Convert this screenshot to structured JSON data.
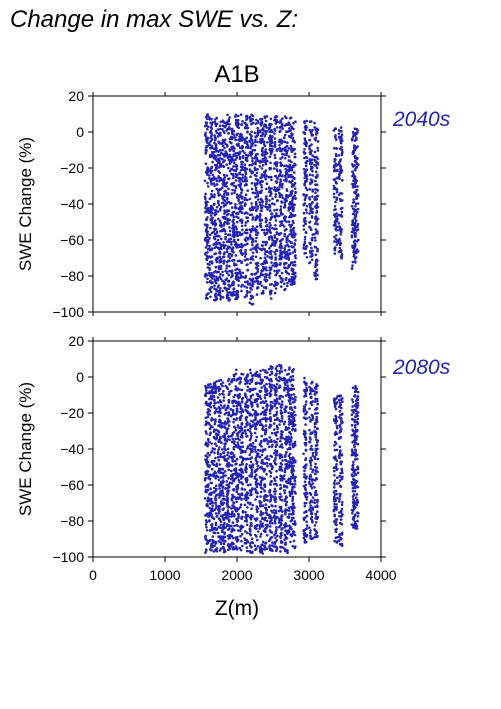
{
  "heading": "Change in max SWE vs. Z:",
  "chart_data": {
    "type": "scatter",
    "title": "A1B",
    "xlabel": "Z(m)",
    "ylabel": "SWE Change (%)",
    "xlim": [
      0,
      4000
    ],
    "ylim": [
      -100,
      20
    ],
    "xticks": [
      0,
      1000,
      2000,
      3000,
      4000
    ],
    "yticks": [
      -100,
      -80,
      -60,
      -40,
      -20,
      0,
      20
    ],
    "grid": false,
    "point_color": "#2222bb",
    "panels": [
      {
        "name": "2040s",
        "elevation_columns": [
          {
            "x": 1580,
            "ymin": -93,
            "ymax": 10
          },
          {
            "x": 1640,
            "ymin": -92,
            "ymax": 9
          },
          {
            "x": 1700,
            "ymin": -94,
            "ymax": 8
          },
          {
            "x": 1760,
            "ymin": -93,
            "ymax": 10
          },
          {
            "x": 1820,
            "ymin": -92,
            "ymax": 9
          },
          {
            "x": 1880,
            "ymin": -94,
            "ymax": 10
          },
          {
            "x": 1940,
            "ymin": -91,
            "ymax": 10
          },
          {
            "x": 2000,
            "ymin": -93,
            "ymax": 10
          },
          {
            "x": 2060,
            "ymin": -90,
            "ymax": 10
          },
          {
            "x": 2130,
            "ymin": -92,
            "ymax": 9
          },
          {
            "x": 2200,
            "ymin": -96,
            "ymax": 10
          },
          {
            "x": 2270,
            "ymin": -92,
            "ymax": 9
          },
          {
            "x": 2340,
            "ymin": -90,
            "ymax": 8
          },
          {
            "x": 2400,
            "ymin": -88,
            "ymax": 9
          },
          {
            "x": 2470,
            "ymin": -93,
            "ymax": 8
          },
          {
            "x": 2540,
            "ymin": -90,
            "ymax": 9
          },
          {
            "x": 2610,
            "ymin": -86,
            "ymax": 8
          },
          {
            "x": 2680,
            "ymin": -88,
            "ymax": 9
          },
          {
            "x": 2740,
            "ymin": -86,
            "ymax": 8
          },
          {
            "x": 2790,
            "ymin": -85,
            "ymax": 7
          },
          {
            "x": 2950,
            "ymin": -70,
            "ymax": 7
          },
          {
            "x": 3030,
            "ymin": -73,
            "ymax": 6
          },
          {
            "x": 3100,
            "ymin": -82,
            "ymax": 5
          },
          {
            "x": 3370,
            "ymin": -68,
            "ymax": 2
          },
          {
            "x": 3440,
            "ymin": -72,
            "ymax": 3
          },
          {
            "x": 3620,
            "ymin": -76,
            "ymax": 0
          },
          {
            "x": 3660,
            "ymin": -70,
            "ymax": 2
          }
        ]
      },
      {
        "name": "2080s",
        "elevation_columns": [
          {
            "x": 1580,
            "ymin": -98,
            "ymax": -3
          },
          {
            "x": 1640,
            "ymin": -97,
            "ymax": -3
          },
          {
            "x": 1700,
            "ymin": -98,
            "ymax": -2
          },
          {
            "x": 1760,
            "ymin": -97,
            "ymax": -1
          },
          {
            "x": 1820,
            "ymin": -98,
            "ymax": -2
          },
          {
            "x": 1880,
            "ymin": -97,
            "ymax": 0
          },
          {
            "x": 1940,
            "ymin": -98,
            "ymax": 2
          },
          {
            "x": 2000,
            "ymin": -97,
            "ymax": 4
          },
          {
            "x": 2060,
            "ymin": -98,
            "ymax": 3
          },
          {
            "x": 2130,
            "ymin": -97,
            "ymax": 2
          },
          {
            "x": 2200,
            "ymin": -98,
            "ymax": 4
          },
          {
            "x": 2270,
            "ymin": -97,
            "ymax": 3
          },
          {
            "x": 2340,
            "ymin": -98,
            "ymax": 4
          },
          {
            "x": 2400,
            "ymin": -97,
            "ymax": 5
          },
          {
            "x": 2470,
            "ymin": -98,
            "ymax": 6
          },
          {
            "x": 2540,
            "ymin": -97,
            "ymax": 7
          },
          {
            "x": 2610,
            "ymin": -97,
            "ymax": 8
          },
          {
            "x": 2680,
            "ymin": -98,
            "ymax": 8
          },
          {
            "x": 2740,
            "ymin": -96,
            "ymax": 7
          },
          {
            "x": 2790,
            "ymin": -95,
            "ymax": 5
          },
          {
            "x": 2950,
            "ymin": -92,
            "ymax": 0
          },
          {
            "x": 3030,
            "ymin": -90,
            "ymax": -2
          },
          {
            "x": 3100,
            "ymin": -91,
            "ymax": -2
          },
          {
            "x": 3370,
            "ymin": -92,
            "ymax": -10
          },
          {
            "x": 3440,
            "ymin": -94,
            "ymax": -8
          },
          {
            "x": 3620,
            "ymin": -88,
            "ymax": -5
          },
          {
            "x": 3660,
            "ymin": -85,
            "ymax": -3
          }
        ]
      }
    ]
  }
}
